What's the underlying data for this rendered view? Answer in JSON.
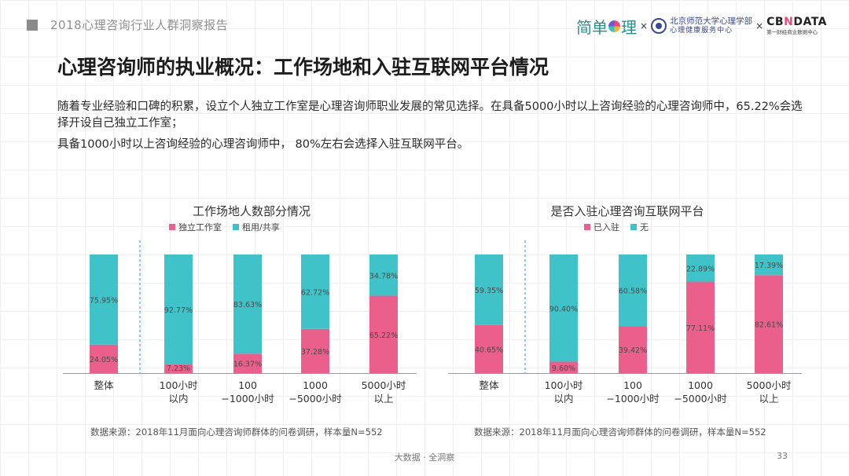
{
  "header": {
    "report_title": "2018心理咨询行业人群洞察报告"
  },
  "logos": {
    "jiandan_prefix": "简单",
    "jiandan_suffix": "理",
    "times": "×",
    "bnu_line1": "北京师范大学心理学部",
    "bnu_line2": "心理健康服务中心",
    "cbn_pre": "CB",
    "cbn_x": "N",
    "cbn_post": "DATA",
    "cbn_sub": "第一财经商业数据中心"
  },
  "title": "心理咨询师的执业概况：工作场地和入驻互联网平台情况",
  "intro": {
    "line1": "随着专业经验和口碑的积累，设立个人独立工作室是心理咨询师职业发展的常见选择。在具备5000小时以上咨询经验的心理咨询师中，65.22%会选择开设自己独立工作室；",
    "line2": "具备1000小时以上咨询经验的心理咨询师中， 80%左右会选择入驻互联网平台。"
  },
  "colors": {
    "pink": "#ea5f8c",
    "teal": "#3fc3c9"
  },
  "chart_data": [
    {
      "type": "bar",
      "stacked": true,
      "percent": true,
      "title": "工作场地人数部分情况",
      "categories": [
        "整体",
        "100小时\n以内",
        "100\n−1000小时",
        "1000\n−5000小时",
        "5000小时\n以上"
      ],
      "series": [
        {
          "name": "独立工作室",
          "color": "#ea5f8c",
          "values": [
            24.05,
            7.23,
            16.37,
            37.28,
            65.22
          ],
          "labels": [
            "24.05%",
            "7.23%",
            "16.37%",
            "37.28%",
            "65.22%"
          ]
        },
        {
          "name": "租用/共享",
          "color": "#3fc3c9",
          "values": [
            75.95,
            92.77,
            83.63,
            62.72,
            34.78
          ],
          "labels": [
            "75.95%",
            "92.77%",
            "83.63%",
            "62.72%",
            "34.78%"
          ]
        }
      ],
      "ylim": [
        0,
        100
      ],
      "source": "数据来源：2018年11月面向心理咨询师群体的问卷调研，样本量N=552"
    },
    {
      "type": "bar",
      "stacked": true,
      "percent": true,
      "title": "是否入驻心理咨询互联网平台",
      "categories": [
        "整体",
        "100小时\n以内",
        "100\n−1000小时",
        "1000\n−5000小时",
        "5000小时\n以上"
      ],
      "series": [
        {
          "name": "已入驻",
          "color": "#ea5f8c",
          "values": [
            40.65,
            9.6,
            39.42,
            77.11,
            82.61
          ],
          "labels": [
            "40.65%",
            "9.60%",
            "39.42%",
            "77.11%",
            "82.61%"
          ]
        },
        {
          "name": "无",
          "color": "#3fc3c9",
          "values": [
            59.35,
            90.4,
            60.58,
            22.89,
            17.39
          ],
          "labels": [
            "59.35%",
            "90.40%",
            "60.58%",
            "22.89%",
            "17.39%"
          ]
        }
      ],
      "ylim": [
        0,
        100
      ],
      "source": "数据来源：2018年11月面向心理咨询师群体的问卷调研，样本量N=552"
    }
  ],
  "footer": {
    "text": "大数据 · 全洞察",
    "page": "33"
  }
}
